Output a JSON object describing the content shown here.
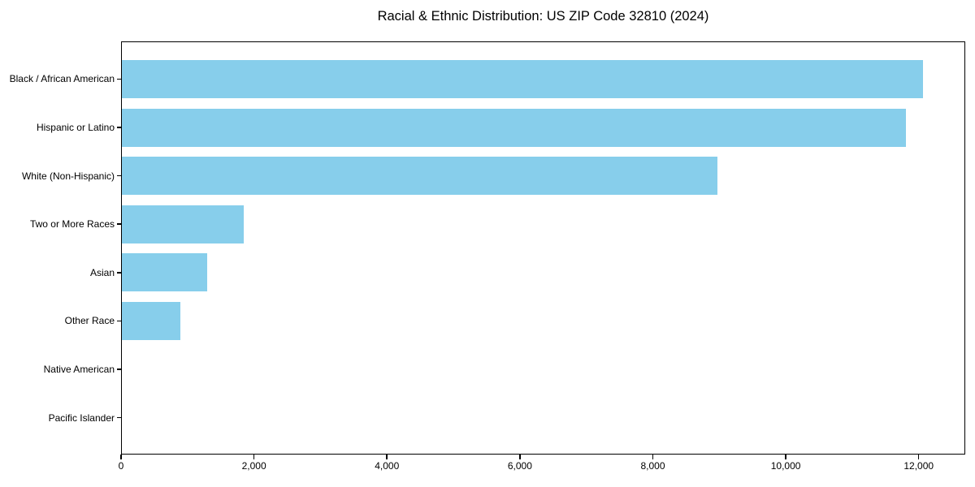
{
  "chart_data": {
    "type": "bar",
    "orientation": "horizontal",
    "title": "Racial & Ethnic Distribution: US ZIP Code 32810 (2024)",
    "categories": [
      "Black / African American",
      "Hispanic or Latino",
      "White (Non-Hispanic)",
      "Two or More Races",
      "Asian",
      "Other Race",
      "Native American",
      "Pacific Islander"
    ],
    "values": [
      12060,
      11810,
      8970,
      1850,
      1290,
      890,
      0,
      0
    ],
    "xlabel": "",
    "ylabel": "",
    "xlim": [
      0,
      12700
    ],
    "x_ticks": [
      0,
      2000,
      4000,
      6000,
      8000,
      10000,
      12000
    ],
    "x_tick_labels": [
      "0",
      "2,000",
      "4,000",
      "6,000",
      "8,000",
      "10,000",
      "12,000"
    ],
    "bar_color": "#87CEEB",
    "axis_color": "#000000",
    "background_color": "#FFFFFF",
    "grid": false,
    "legend": "none"
  }
}
